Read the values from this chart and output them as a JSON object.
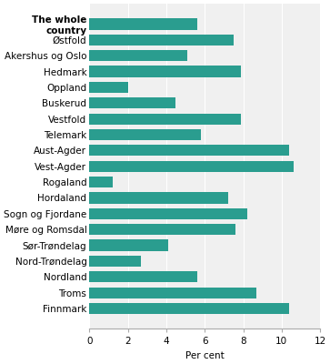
{
  "xlabel": "Per cent",
  "xlim": [
    0,
    12
  ],
  "xticks": [
    0,
    2,
    4,
    6,
    8,
    10,
    12
  ],
  "bar_color": "#2a9d8f",
  "plot_bg_color": "#f0f0f0",
  "grid_color": "#ffffff",
  "title_line_color": "#2a9d8f",
  "categories": [
    "The whole\ncountry",
    "Østfold",
    "Akershus og Oslo",
    "Hedmark",
    "Oppland",
    "Buskerud",
    "Vestfold",
    "Telemark",
    "Aust-Agder",
    "Vest-Agder",
    "Rogaland",
    "Hordaland",
    "Sogn og Fjordane",
    "Møre og Romsdal",
    "Sør-Trøndelag",
    "Nord-Trøndelag",
    "Nordland",
    "Troms",
    "Finnmark"
  ],
  "values": [
    5.6,
    7.5,
    5.1,
    7.9,
    2.0,
    4.5,
    7.9,
    5.8,
    10.4,
    10.6,
    1.2,
    7.2,
    8.2,
    7.6,
    4.1,
    2.7,
    5.6,
    8.7,
    10.4
  ],
  "title_fontsize": 9,
  "label_fontsize": 7.5,
  "tick_fontsize": 7.5
}
